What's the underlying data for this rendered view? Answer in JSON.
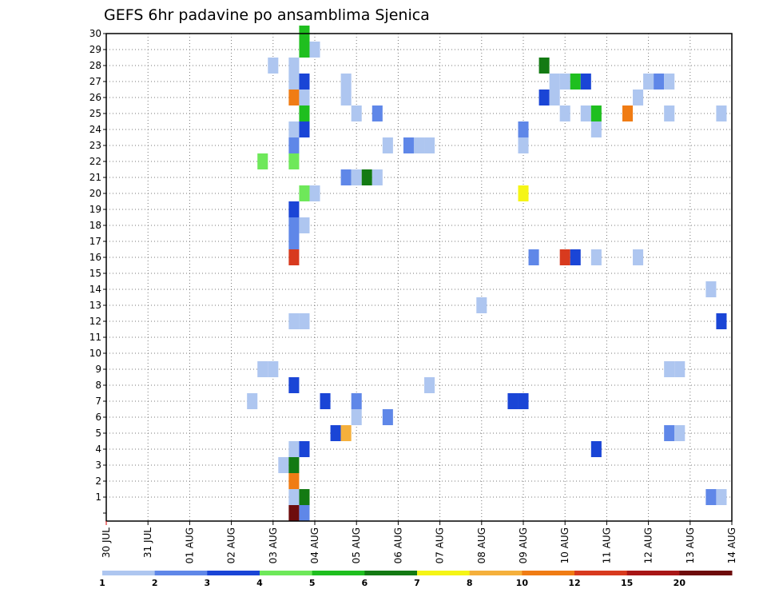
{
  "chart_data": {
    "type": "heatmap",
    "title": "GEFS 6hr padavine po ansamblima Sjenica",
    "xlabel": "",
    "ylabel": "",
    "grid": true,
    "x_tick_labels": [
      "30 JUL",
      "31 JUL",
      "01 AUG",
      "02 AUG",
      "03 AUG",
      "04 AUG",
      "05 AUG",
      "06 AUG",
      "07 AUG",
      "08 AUG",
      "09 AUG",
      "10 AUG",
      "11 AUG",
      "12 AUG",
      "13 AUG",
      "14 AUG"
    ],
    "y_tick_labels": [
      "1",
      "2",
      "3",
      "4",
      "5",
      "6",
      "7",
      "8",
      "9",
      "10",
      "11",
      "12",
      "13",
      "14",
      "15",
      "16",
      "17",
      "18",
      "19",
      "20",
      "21",
      "22",
      "23",
      "24",
      "25",
      "26",
      "27",
      "28",
      "29",
      "30"
    ],
    "xlim_days": [
      0,
      15
    ],
    "ylim_members": [
      0,
      30
    ],
    "colorbar": {
      "labels": [
        "1",
        "2",
        "3",
        "4",
        "5",
        "6",
        "7",
        "8",
        "10",
        "12",
        "15",
        "20"
      ],
      "colors": [
        "#aec6f0",
        "#5f87e8",
        "#1a45d6",
        "#6ee85a",
        "#1fbf1f",
        "#137a13",
        "#f5f516",
        "#f5b03c",
        "#f07c14",
        "#d83a1e",
        "#a81616",
        "#6e0c0c"
      ]
    },
    "cells": [
      {
        "member": 30,
        "day": 4.75,
        "level": 5
      },
      {
        "member": 29,
        "day": 4.75,
        "level": 5
      },
      {
        "member": 29,
        "day": 5.0,
        "level": 1
      },
      {
        "member": 28,
        "day": 4.0,
        "level": 1
      },
      {
        "member": 28,
        "day": 4.5,
        "level": 1
      },
      {
        "member": 28,
        "day": 10.5,
        "level": 6
      },
      {
        "member": 27,
        "day": 4.5,
        "level": 1
      },
      {
        "member": 27,
        "day": 4.75,
        "level": 3
      },
      {
        "member": 27,
        "day": 5.75,
        "level": 1
      },
      {
        "member": 27,
        "day": 10.75,
        "level": 1
      },
      {
        "member": 27,
        "day": 11.0,
        "level": 1
      },
      {
        "member": 27,
        "day": 11.25,
        "level": 5
      },
      {
        "member": 27,
        "day": 11.5,
        "level": 3
      },
      {
        "member": 27,
        "day": 13.0,
        "level": 1
      },
      {
        "member": 27,
        "day": 13.25,
        "level": 2
      },
      {
        "member": 27,
        "day": 13.5,
        "level": 1
      },
      {
        "member": 26,
        "day": 4.5,
        "level": 9
      },
      {
        "member": 26,
        "day": 4.75,
        "level": 1
      },
      {
        "member": 26,
        "day": 5.75,
        "level": 1
      },
      {
        "member": 26,
        "day": 10.5,
        "level": 3
      },
      {
        "member": 26,
        "day": 10.75,
        "level": 1
      },
      {
        "member": 26,
        "day": 12.75,
        "level": 1
      },
      {
        "member": 25,
        "day": 4.75,
        "level": 5
      },
      {
        "member": 25,
        "day": 6.0,
        "level": 1
      },
      {
        "member": 25,
        "day": 6.5,
        "level": 2
      },
      {
        "member": 25,
        "day": 11.0,
        "level": 1
      },
      {
        "member": 25,
        "day": 11.5,
        "level": 1
      },
      {
        "member": 25,
        "day": 11.75,
        "level": 5
      },
      {
        "member": 25,
        "day": 12.5,
        "level": 9
      },
      {
        "member": 25,
        "day": 13.5,
        "level": 1
      },
      {
        "member": 25,
        "day": 14.75,
        "level": 1
      },
      {
        "member": 24,
        "day": 4.5,
        "level": 1
      },
      {
        "member": 24,
        "day": 4.75,
        "level": 3
      },
      {
        "member": 24,
        "day": 10.0,
        "level": 2
      },
      {
        "member": 24,
        "day": 11.75,
        "level": 1
      },
      {
        "member": 23,
        "day": 4.5,
        "level": 2
      },
      {
        "member": 23,
        "day": 6.75,
        "level": 1
      },
      {
        "member": 23,
        "day": 7.25,
        "level": 2
      },
      {
        "member": 23,
        "day": 7.5,
        "level": 1
      },
      {
        "member": 23,
        "day": 7.75,
        "level": 1
      },
      {
        "member": 23,
        "day": 10.0,
        "level": 1
      },
      {
        "member": 22,
        "day": 3.75,
        "level": 4
      },
      {
        "member": 22,
        "day": 4.5,
        "level": 4
      },
      {
        "member": 21,
        "day": 5.75,
        "level": 2
      },
      {
        "member": 21,
        "day": 6.0,
        "level": 1
      },
      {
        "member": 21,
        "day": 6.25,
        "level": 6
      },
      {
        "member": 21,
        "day": 6.5,
        "level": 1
      },
      {
        "member": 20,
        "day": 4.75,
        "level": 4
      },
      {
        "member": 20,
        "day": 5.0,
        "level": 1
      },
      {
        "member": 20,
        "day": 10.0,
        "level": 7
      },
      {
        "member": 19,
        "day": 4.5,
        "level": 3
      },
      {
        "member": 18,
        "day": 4.5,
        "level": 2
      },
      {
        "member": 18,
        "day": 4.75,
        "level": 1
      },
      {
        "member": 17,
        "day": 4.5,
        "level": 2
      },
      {
        "member": 16,
        "day": 4.5,
        "level": 10
      },
      {
        "member": 16,
        "day": 10.25,
        "level": 2
      },
      {
        "member": 16,
        "day": 11.0,
        "level": 10
      },
      {
        "member": 16,
        "day": 11.25,
        "level": 3
      },
      {
        "member": 16,
        "day": 11.75,
        "level": 1
      },
      {
        "member": 16,
        "day": 12.75,
        "level": 1
      },
      {
        "member": 14,
        "day": 14.5,
        "level": 1
      },
      {
        "member": 13,
        "day": 9.0,
        "level": 1
      },
      {
        "member": 12,
        "day": 4.5,
        "level": 1
      },
      {
        "member": 12,
        "day": 4.75,
        "level": 1
      },
      {
        "member": 12,
        "day": 14.75,
        "level": 3
      },
      {
        "member": 9,
        "day": 3.75,
        "level": 1
      },
      {
        "member": 9,
        "day": 4.0,
        "level": 1
      },
      {
        "member": 9,
        "day": 13.5,
        "level": 1
      },
      {
        "member": 9,
        "day": 13.75,
        "level": 1
      },
      {
        "member": 8,
        "day": 4.5,
        "level": 3
      },
      {
        "member": 8,
        "day": 7.75,
        "level": 1
      },
      {
        "member": 7,
        "day": 3.5,
        "level": 1
      },
      {
        "member": 7,
        "day": 5.25,
        "level": 3
      },
      {
        "member": 7,
        "day": 6.0,
        "level": 2
      },
      {
        "member": 7,
        "day": 9.75,
        "level": 3
      },
      {
        "member": 7,
        "day": 10.0,
        "level": 3
      },
      {
        "member": 6,
        "day": 6.0,
        "level": 1
      },
      {
        "member": 6,
        "day": 6.75,
        "level": 2
      },
      {
        "member": 5,
        "day": 5.5,
        "level": 3
      },
      {
        "member": 5,
        "day": 5.75,
        "level": 8
      },
      {
        "member": 5,
        "day": 13.5,
        "level": 2
      },
      {
        "member": 5,
        "day": 13.75,
        "level": 1
      },
      {
        "member": 4,
        "day": 4.5,
        "level": 1
      },
      {
        "member": 4,
        "day": 4.75,
        "level": 3
      },
      {
        "member": 4,
        "day": 11.75,
        "level": 3
      },
      {
        "member": 3,
        "day": 4.25,
        "level": 1
      },
      {
        "member": 3,
        "day": 4.5,
        "level": 6
      },
      {
        "member": 2,
        "day": 4.5,
        "level": 9
      },
      {
        "member": 1,
        "day": 4.5,
        "level": 1
      },
      {
        "member": 1,
        "day": 4.75,
        "level": 6
      },
      {
        "member": 1,
        "day": 14.5,
        "level": 2
      },
      {
        "member": 1,
        "day": 14.75,
        "level": 1
      },
      {
        "member": 0,
        "day": 4.5,
        "level": 12
      },
      {
        "member": 0,
        "day": 4.75,
        "level": 2
      }
    ]
  }
}
